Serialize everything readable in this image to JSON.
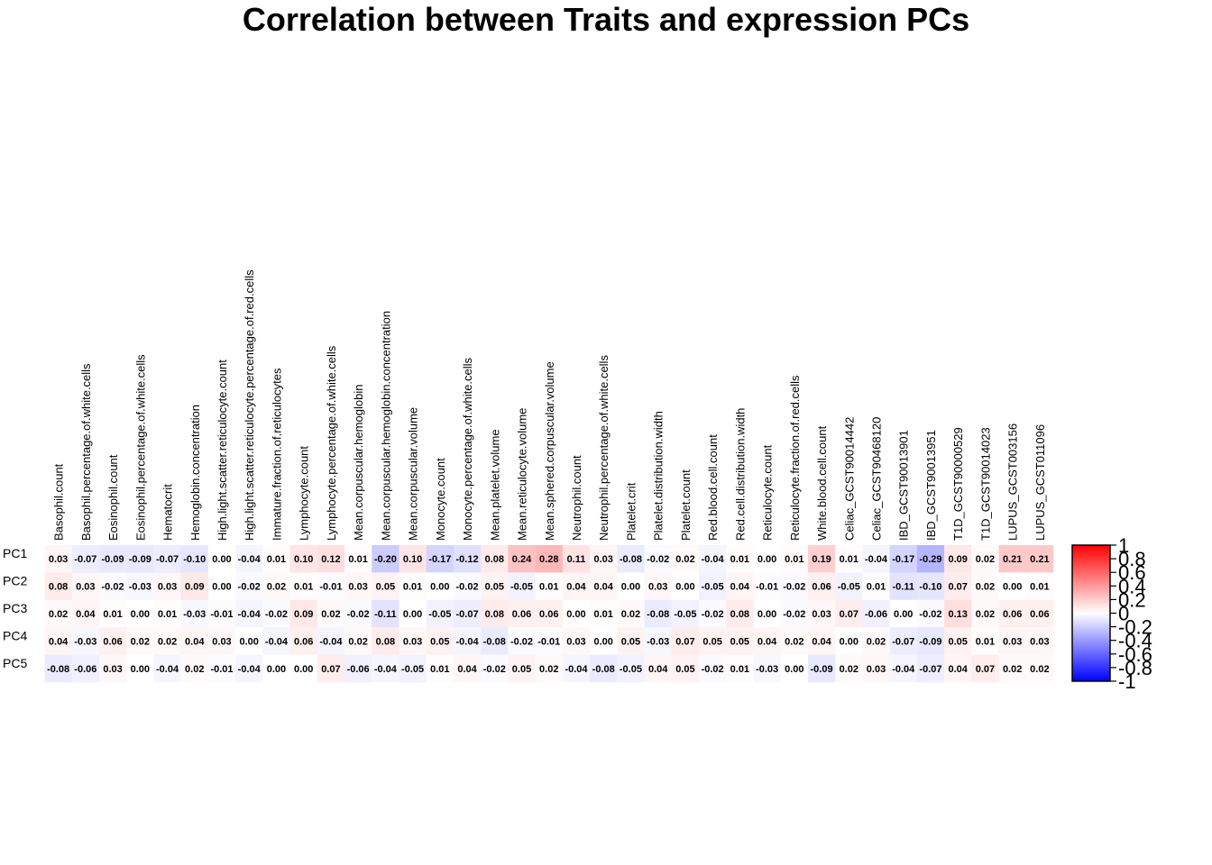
{
  "chart_data": {
    "type": "heatmap",
    "title": "Correlation between Traits and expression PCs",
    "rows": [
      "PC1",
      "PC2",
      "PC3",
      "PC4",
      "PC5"
    ],
    "columns": [
      "Basophil.count",
      "Basophil.percentage.of.white.cells",
      "Eosinophil.count",
      "Eosinophil.percentage.of.white.cells",
      "Hematocrit",
      "Hemoglobin.concentration",
      "High.light.scatter.reticulocyte.count",
      "High.light.scatter.reticulocyte.percentage.of.red.cells",
      "Immature.fraction.of.reticulocytes",
      "Lymphocyte.count",
      "Lymphocyte.percentage.of.white.cells",
      "Mean.corpuscular.hemoglobin",
      "Mean.corpuscular.hemoglobin.concentration",
      "Mean.corpuscular.volume",
      "Monocyte.count",
      "Monocyte.percentage.of.white.cells",
      "Mean.platelet.volume",
      "Mean.reticulocyte.volume",
      "Mean.sphered.corpuscular.volume",
      "Neutrophil.count",
      "Neutrophil.percentage.of.white.cells",
      "Platelet.crit",
      "Platelet.distribution.width",
      "Platelet.count",
      "Red.blood.cell.count",
      "Red.cell.distribution.width",
      "Reticulocyte.count",
      "Reticulocyte.fraction.of.red.cells",
      "White.blood.cell.count",
      "Celiac_GCST90014442",
      "Celiac_GCST90468120",
      "IBD_GCST90013901",
      "IBD_GCST90013951",
      "T1D_GCST90000529",
      "T1D_GCST90014023",
      "LUPUS_GCST003156",
      "LUPUS_GCST011096"
    ],
    "values": [
      [
        0.03,
        -0.07,
        -0.09,
        -0.09,
        -0.07,
        -0.1,
        0.0,
        -0.04,
        0.01,
        0.1,
        0.12,
        0.01,
        -0.2,
        0.1,
        -0.17,
        -0.12,
        0.08,
        0.24,
        0.28,
        0.11,
        0.03,
        -0.08,
        -0.02,
        0.02,
        -0.04,
        0.01,
        0.0,
        0.01,
        0.19,
        0.01,
        -0.04,
        -0.17,
        -0.29,
        0.09,
        0.02,
        0.21,
        0.21
      ],
      [
        0.08,
        0.03,
        -0.02,
        -0.03,
        0.03,
        0.09,
        0.0,
        -0.02,
        0.02,
        0.01,
        -0.01,
        0.03,
        0.05,
        0.01,
        0.0,
        -0.02,
        0.05,
        -0.05,
        0.01,
        0.04,
        0.04,
        0.0,
        0.03,
        0.0,
        -0.05,
        0.04,
        -0.01,
        -0.02,
        0.06,
        -0.05,
        0.01,
        -0.11,
        -0.1,
        0.07,
        0.02,
        0.0,
        0.01
      ],
      [
        0.02,
        0.04,
        0.01,
        0.0,
        0.01,
        -0.03,
        -0.01,
        -0.04,
        -0.02,
        0.09,
        0.02,
        -0.02,
        -0.11,
        0.0,
        -0.05,
        -0.07,
        0.08,
        0.06,
        0.06,
        0.0,
        0.01,
        0.02,
        -0.08,
        -0.05,
        -0.02,
        0.08,
        0.0,
        -0.02,
        0.03,
        0.07,
        -0.06,
        0.0,
        -0.02,
        0.13,
        0.02,
        0.06,
        0.06
      ],
      [
        0.04,
        -0.03,
        0.06,
        0.02,
        0.02,
        0.04,
        0.03,
        0.0,
        -0.04,
        0.06,
        -0.04,
        0.02,
        0.08,
        0.03,
        0.05,
        -0.04,
        -0.08,
        -0.02,
        -0.01,
        0.03,
        0.0,
        0.05,
        -0.03,
        0.07,
        0.05,
        0.05,
        0.04,
        0.02,
        0.04,
        0.0,
        0.02,
        -0.07,
        -0.09,
        0.05,
        0.01,
        0.03,
        0.03
      ],
      [
        -0.08,
        -0.06,
        0.03,
        0.0,
        -0.04,
        0.02,
        -0.01,
        -0.04,
        0.0,
        0.0,
        0.07,
        -0.06,
        -0.04,
        -0.05,
        0.01,
        0.04,
        -0.02,
        0.05,
        0.02,
        -0.04,
        -0.08,
        -0.05,
        0.04,
        0.05,
        -0.02,
        0.01,
        -0.03,
        0.0,
        -0.09,
        0.02,
        0.03,
        -0.04,
        -0.07,
        0.04,
        0.07,
        0.02,
        0.02
      ]
    ],
    "value_labels": [
      [
        "0.03",
        "-0.07",
        "-0.09",
        "-0.09",
        "-0.07",
        "-0.10",
        "0.00",
        "-0.04",
        "0.01",
        "0.10",
        "0.12",
        "0.01",
        "-0.20",
        "0.10",
        "-0.17",
        "-0.12",
        "0.08",
        "0.24",
        "0.28",
        "0.11",
        "0.03",
        "-0.08",
        "-0.02",
        "0.02",
        "-0.04",
        "0.01",
        "0.00",
        "0.01",
        "0.19",
        "0.01",
        "-0.04",
        "-0.17",
        "-0.29",
        "0.09",
        "0.02",
        "0.21",
        "0.21"
      ],
      [
        "0.08",
        "0.03",
        "-0.02",
        "-0.03",
        "0.03",
        "0.09",
        "0.00",
        "-0.02",
        "0.02",
        "0.01",
        "-0.01",
        "0.03",
        "0.05",
        "0.01",
        "0.00",
        "-0.02",
        "0.05",
        "-0.05",
        "0.01",
        "0.04",
        "0.04",
        "0.00",
        "0.03",
        "0.00",
        "-0.05",
        "0.04",
        "-0.01",
        "-0.02",
        "0.06",
        "-0.05",
        "0.01",
        "-0.11",
        "-0.10",
        "0.07",
        "0.02",
        "0.00",
        "0.01"
      ],
      [
        "0.02",
        "0.04",
        "0.01",
        "0.00",
        "0.01",
        "-0.03",
        "-0.01",
        "-0.04",
        "-0.02",
        "0.09",
        "0.02",
        "-0.02",
        "-0.11",
        "0.00",
        "-0.05",
        "-0.07",
        "0.08",
        "0.06",
        "0.06",
        "0.00",
        "0.01",
        "0.02",
        "-0.08",
        "-0.05",
        "-0.02",
        "0.08",
        "0.00",
        "-0.02",
        "0.03",
        "0.07",
        "-0.06",
        "0.00",
        "-0.02",
        "0.13",
        "0.02",
        "0.06",
        "0.06"
      ],
      [
        "0.04",
        "-0.03",
        "0.06",
        "0.02",
        "0.02",
        "0.04",
        "0.03",
        "0.00",
        "-0.04",
        "0.06",
        "-0.04",
        "0.02",
        "0.08",
        "0.03",
        "0.05",
        "-0.04",
        "-0.08",
        "-0.02",
        "-0.01",
        "0.03",
        "0.00",
        "0.05",
        "-0.03",
        "0.07",
        "0.05",
        "0.05",
        "0.04",
        "0.02",
        "0.04",
        "0.00",
        "0.02",
        "-0.07",
        "-0.09",
        "0.05",
        "0.01",
        "0.03",
        "0.03"
      ],
      [
        "-0.08",
        "-0.06",
        "0.03",
        "0.00",
        "-0.04",
        "0.02",
        "-0.01",
        "-0.04",
        "0.00",
        "0.00",
        "0.07",
        "-0.06",
        "-0.04",
        "-0.05",
        "0.01",
        "0.04",
        "-0.02",
        "0.05",
        "0.02",
        "-0.04",
        "-0.08",
        "-0.05",
        "0.04",
        "0.05",
        "-0.02",
        "0.01",
        "-0.03",
        "0.00",
        "-0.09",
        "0.02",
        "0.03",
        "-0.04",
        "-0.07",
        "0.04",
        "0.07",
        "0.02",
        "0.02"
      ]
    ],
    "color_scale": {
      "min": -1,
      "max": 1,
      "low_color": "#0000ff",
      "mid_color": "#ffffff",
      "high_color": "#ff0000",
      "ticks": [
        "1",
        "0.8",
        "0.6",
        "0.4",
        "0.2",
        "0",
        "-0.2",
        "-0.4",
        "-0.6",
        "-0.8",
        "-1"
      ]
    },
    "legend": "right"
  }
}
